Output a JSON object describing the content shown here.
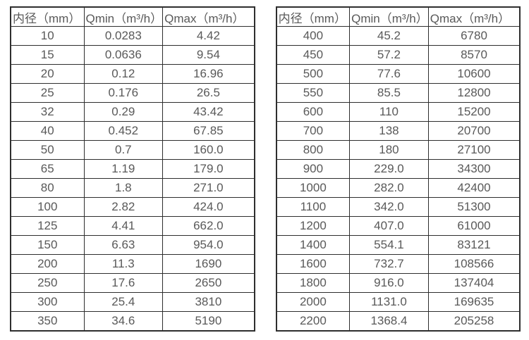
{
  "page": {
    "background_color": "#ffffff",
    "text_color": "#595959",
    "border_color": "#2e2e2e"
  },
  "tables": [
    {
      "name": "flow-table-small-diameters",
      "headers": [
        "内径（mm）",
        "Qmin（m³/h）",
        "Qmax（m³/h）"
      ],
      "rows": [
        [
          "10",
          "0.0283",
          "4.42"
        ],
        [
          "15",
          "0.0636",
          "9.54"
        ],
        [
          "20",
          "0.12",
          "16.96"
        ],
        [
          "25",
          "0.176",
          "26.5"
        ],
        [
          "32",
          "0.29",
          "43.42"
        ],
        [
          "40",
          "0.452",
          "67.85"
        ],
        [
          "50",
          "0.7",
          "160.0"
        ],
        [
          "65",
          "1.19",
          "179.0"
        ],
        [
          "80",
          "1.8",
          "271.0"
        ],
        [
          "100",
          "2.82",
          "424.0"
        ],
        [
          "125",
          "4.41",
          "662.0"
        ],
        [
          "150",
          "6.63",
          "954.0"
        ],
        [
          "200",
          "11.3",
          "1690"
        ],
        [
          "250",
          "17.6",
          "2650"
        ],
        [
          "300",
          "25.4",
          "3810"
        ],
        [
          "350",
          "34.6",
          "5190"
        ]
      ]
    },
    {
      "name": "flow-table-large-diameters",
      "headers": [
        "内径（mm）",
        "Qmin（m³/h）",
        "Qmax（m³/h）"
      ],
      "rows": [
        [
          "400",
          "45.2",
          "6780"
        ],
        [
          "450",
          "57.2",
          "8570"
        ],
        [
          "500",
          "77.6",
          "10600"
        ],
        [
          "550",
          "85.5",
          "12800"
        ],
        [
          "600",
          "110",
          "15200"
        ],
        [
          "700",
          "138",
          "20700"
        ],
        [
          "800",
          "180",
          "27100"
        ],
        [
          "900",
          "229.0",
          "34300"
        ],
        [
          "1000",
          "282.0",
          "42400"
        ],
        [
          "1100",
          "342.0",
          "51300"
        ],
        [
          "1200",
          "407.0",
          "61000"
        ],
        [
          "1400",
          "554.1",
          "83121"
        ],
        [
          "1600",
          "732.7",
          "108566"
        ],
        [
          "1800",
          "916.0",
          "137404"
        ],
        [
          "2000",
          "1131.0",
          "169635"
        ],
        [
          "2200",
          "1368.4",
          "205258"
        ]
      ]
    }
  ]
}
